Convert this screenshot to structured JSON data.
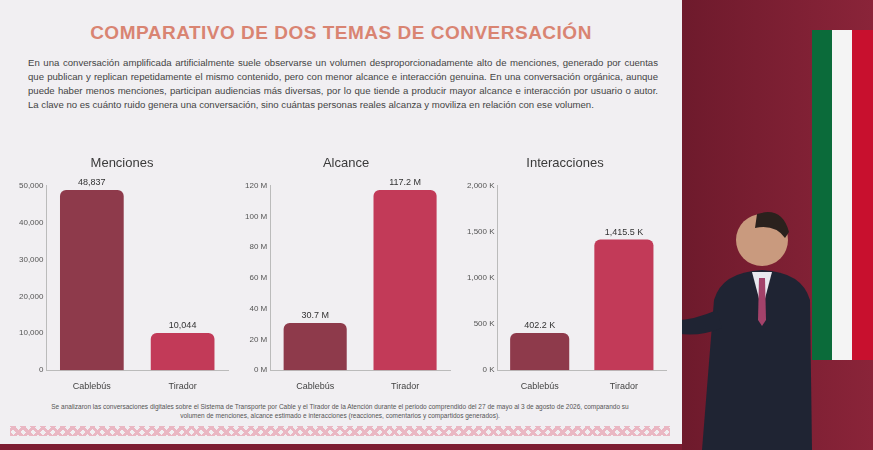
{
  "slide": {
    "title": "COMPARATIVO DE DOS TEMAS DE CONVERSACIÓN",
    "text": "En una conversación amplificada artificialmente suele observarse un volumen desproporcionadamente alto de menciones, generado por cuentas que publican y replican repetidamente el mismo contenido, pero con menor alcance e interacción genuina. En una conversación orgánica, aunque puede haber menos menciones, participan audiencias más diversas, por lo que tiende a producir mayor alcance e interacción por usuario o autor. La clave no es cuánto ruido genera una conversación, sino cuántas personas reales alcanza y moviliza en relación con ese volumen.",
    "note": "Se analizaron las conversaciones digitales sobre el Sistema de Transporte por Cable y el Tirador de la Atención durante el periodo comprendido del 27 de mayo al 3 de agosto de 2026, comparando su volumen de menciones, alcance estimado e interacciones (reacciones, comentarios y compartidos generados)."
  },
  "chart_data": [
    {
      "type": "bar",
      "title": "Menciones",
      "categories": [
        "Cablebús",
        "Tirador"
      ],
      "values": [
        48837,
        10044
      ],
      "value_labels": [
        "48,837",
        "10,044"
      ],
      "data_labels": true,
      "colors": [
        "#8e3a4b",
        "#c23a58"
      ],
      "ylim": [
        0,
        50000
      ],
      "yticks": [
        0,
        {
          "value": 10000,
          "label": "10,000"
        },
        {
          "value": 20000,
          "label": "20,000"
        },
        {
          "value": 30000,
          "label": "30,000"
        },
        {
          "value": 40000,
          "label": "40,000"
        },
        {
          "value": 50000,
          "label": "50,000"
        }
      ],
      "grid": false
    },
    {
      "type": "bar",
      "title": "Alcance",
      "categories": [
        "Cablebús",
        "Tirador"
      ],
      "values": [
        30.7,
        117.2
      ],
      "value_labels": [
        "30.7 M",
        "117.2 M"
      ],
      "data_labels": true,
      "colors": [
        "#8e3a4b",
        "#c23a58"
      ],
      "ylim": [
        0,
        120
      ],
      "yticks": [
        {
          "value": 0,
          "label": "0 M"
        },
        {
          "value": 20,
          "label": "20 M"
        },
        {
          "value": 40,
          "label": "40 M"
        },
        {
          "value": 60,
          "label": "60 M"
        },
        {
          "value": 80,
          "label": "80 M"
        },
        {
          "value": 100,
          "label": "100 M"
        },
        {
          "value": 120,
          "label": "120 M"
        }
      ],
      "grid": false
    },
    {
      "type": "bar",
      "title": "Interacciones",
      "categories": [
        "Cablebús",
        "Tirador"
      ],
      "values": [
        402.2,
        1415.5
      ],
      "value_labels": [
        "402.2 K",
        "1,415.5 K"
      ],
      "data_labels": true,
      "colors": [
        "#8e3a4b",
        "#c23a58"
      ],
      "ylim": [
        0,
        2000
      ],
      "yticks": [
        {
          "value": 0,
          "label": "0 K"
        },
        {
          "value": 500,
          "label": "500 K"
        },
        {
          "value": 1000,
          "label": "1,000 K"
        },
        {
          "value": 1500,
          "label": "1,500 K"
        },
        {
          "value": 2000,
          "label": "2,000 K"
        }
      ],
      "grid": false
    }
  ]
}
